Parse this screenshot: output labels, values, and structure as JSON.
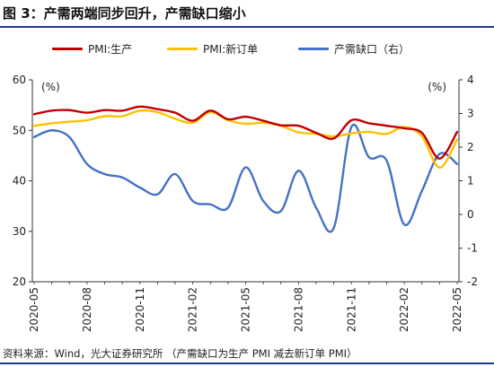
{
  "figure": {
    "title": "图 3：产需两端同步回升，产需缺口缩小",
    "source": "资料来源：Wind，光大证券研究所   （产需缺口为生产 PMI 减去新订单 PMI）"
  },
  "colors": {
    "production": "#c00000",
    "new_orders": "#ffc000",
    "gap": "#4472c4",
    "axis": "#333333",
    "title_rule": "#1f3a8a"
  },
  "chart_data": {
    "type": "line",
    "title": "",
    "left_axis": {
      "label": "(%)",
      "ylim": [
        20,
        60
      ],
      "ticks": [
        20,
        30,
        40,
        50,
        60
      ]
    },
    "right_axis": {
      "label": "(%)",
      "ylim": [
        -2,
        4
      ],
      "ticks": [
        -2,
        -1,
        0,
        1,
        2,
        3,
        4
      ]
    },
    "x_tick_labels": [
      "2020-05",
      "2020-08",
      "2020-11",
      "2021-02",
      "2021-05",
      "2021-08",
      "2021-11",
      "2022-02",
      "2022-05"
    ],
    "x": [
      "2020-05",
      "2020-06",
      "2020-07",
      "2020-08",
      "2020-09",
      "2020-10",
      "2020-11",
      "2020-12",
      "2021-01",
      "2021-02",
      "2021-03",
      "2021-04",
      "2021-05",
      "2021-06",
      "2021-07",
      "2021-08",
      "2021-09",
      "2021-10",
      "2021-11",
      "2021-12",
      "2022-01",
      "2022-02",
      "2022-03",
      "2022-04",
      "2022-05"
    ],
    "series": [
      {
        "name": "PMI:生产",
        "axis": "left",
        "color_key": "production",
        "values": [
          53.2,
          53.9,
          54.0,
          53.5,
          54.0,
          53.9,
          54.7,
          54.2,
          53.5,
          51.9,
          53.9,
          52.2,
          52.7,
          51.9,
          51.0,
          50.9,
          49.5,
          48.4,
          52.0,
          51.4,
          50.9,
          50.4,
          49.5,
          44.4,
          49.7
        ]
      },
      {
        "name": "PMI:新订单",
        "axis": "left",
        "color_key": "new_orders",
        "values": [
          50.9,
          51.4,
          51.7,
          52.0,
          52.8,
          52.8,
          53.9,
          53.6,
          52.3,
          51.5,
          53.6,
          52.0,
          51.3,
          51.5,
          50.9,
          49.6,
          49.3,
          48.8,
          49.4,
          49.7,
          49.3,
          50.7,
          48.8,
          42.6,
          48.2
        ]
      },
      {
        "name": "产需缺口（右）",
        "axis": "right",
        "color_key": "gap",
        "values": [
          2.3,
          2.5,
          2.3,
          1.5,
          1.2,
          1.1,
          0.8,
          0.6,
          1.2,
          0.4,
          0.3,
          0.2,
          1.4,
          0.4,
          0.1,
          1.3,
          0.2,
          -0.4,
          2.6,
          1.7,
          1.6,
          -0.3,
          0.7,
          1.8,
          1.5
        ]
      }
    ],
    "grid": false,
    "legend": "top"
  }
}
